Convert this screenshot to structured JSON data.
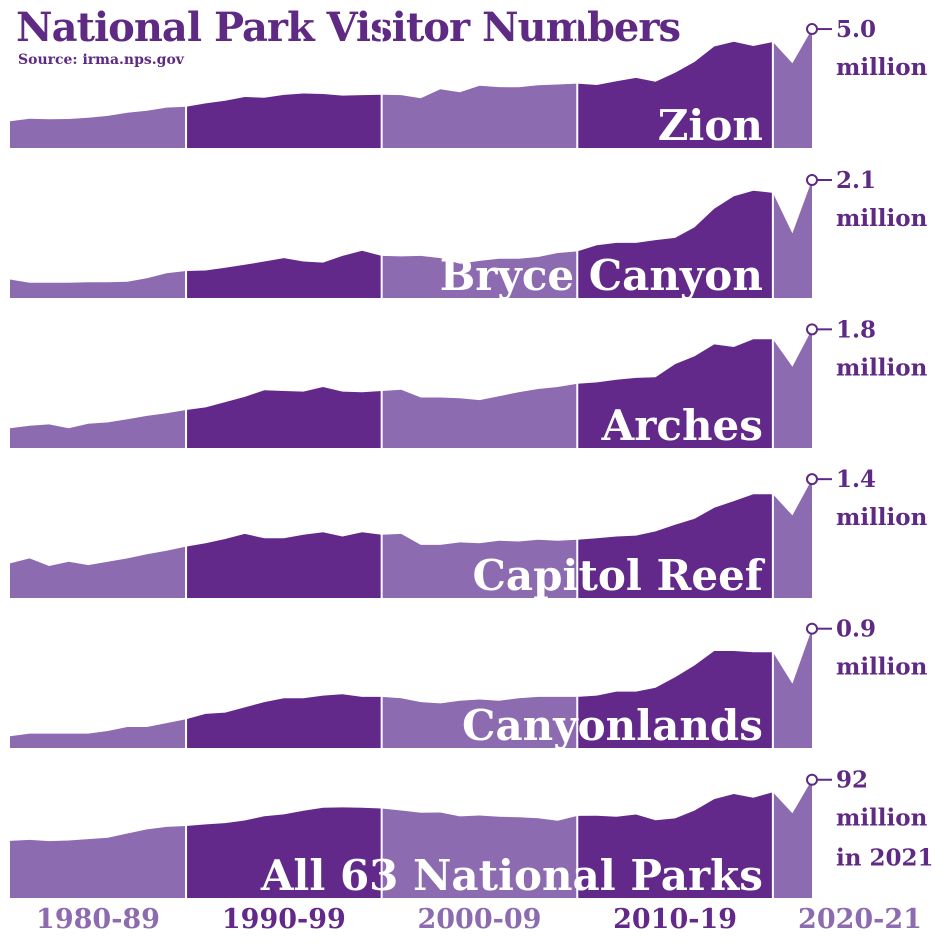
{
  "title": "National Park Visitor Numbers",
  "source": "Source: irma.nps.gov",
  "chart_data": {
    "type": "area",
    "x": [
      1980,
      1981,
      1982,
      1983,
      1984,
      1985,
      1986,
      1987,
      1988,
      1989,
      1990,
      1991,
      1992,
      1993,
      1994,
      1995,
      1996,
      1997,
      1998,
      1999,
      2000,
      2001,
      2002,
      2003,
      2004,
      2005,
      2006,
      2007,
      2008,
      2009,
      2010,
      2011,
      2012,
      2013,
      2014,
      2015,
      2016,
      2017,
      2018,
      2019,
      2020,
      2021
    ],
    "decades": [
      {
        "label": "1980-89",
        "from": 1980,
        "to": 1989,
        "tone": "light"
      },
      {
        "label": "1990-99",
        "from": 1989,
        "to": 1999,
        "tone": "dark"
      },
      {
        "label": "2000-09",
        "from": 1999,
        "to": 2009,
        "tone": "light"
      },
      {
        "label": "2010-19",
        "from": 2009,
        "to": 2019,
        "tone": "dark"
      },
      {
        "label": "2020-21",
        "from": 2019,
        "to": 2021,
        "tone": "light"
      }
    ],
    "colors": {
      "light": "#8c6bb1",
      "dark": "#62298b",
      "text": "#5e2a84",
      "divider": "#ffffff"
    },
    "series": [
      {
        "name": "Zion",
        "end_value": "5.0",
        "end_unit": [
          "million"
        ],
        "unit": "million",
        "ylim": [
          0,
          5.0
        ],
        "values": [
          1.13,
          1.24,
          1.22,
          1.23,
          1.28,
          1.36,
          1.49,
          1.58,
          1.71,
          1.75,
          1.89,
          2.0,
          2.16,
          2.13,
          2.25,
          2.31,
          2.29,
          2.22,
          2.24,
          2.26,
          2.24,
          2.11,
          2.49,
          2.36,
          2.64,
          2.58,
          2.57,
          2.66,
          2.69,
          2.73,
          2.67,
          2.83,
          2.97,
          2.81,
          3.19,
          3.65,
          4.3,
          4.5,
          4.32,
          4.49,
          3.59,
          5.04
        ]
      },
      {
        "name": "Bryce Canyon",
        "end_value": "2.1",
        "end_unit": [
          "million"
        ],
        "unit": "million",
        "ylim": [
          0,
          2.1
        ],
        "values": [
          0.33,
          0.27,
          0.27,
          0.27,
          0.28,
          0.28,
          0.29,
          0.35,
          0.44,
          0.48,
          0.49,
          0.54,
          0.59,
          0.65,
          0.71,
          0.65,
          0.63,
          0.75,
          0.84,
          0.75,
          0.74,
          0.75,
          0.71,
          0.61,
          0.66,
          0.7,
          0.7,
          0.73,
          0.8,
          0.83,
          0.94,
          0.98,
          0.98,
          1.03,
          1.07,
          1.26,
          1.59,
          1.81,
          1.91,
          1.87,
          1.15,
          2.1
        ]
      },
      {
        "name": "Arches",
        "end_value": "1.8",
        "end_unit": [
          "million"
        ],
        "unit": "million",
        "ylim": [
          0,
          1.8
        ],
        "values": [
          0.3,
          0.34,
          0.36,
          0.3,
          0.37,
          0.39,
          0.44,
          0.49,
          0.53,
          0.58,
          0.62,
          0.7,
          0.78,
          0.88,
          0.87,
          0.86,
          0.93,
          0.86,
          0.85,
          0.87,
          0.89,
          0.77,
          0.77,
          0.76,
          0.73,
          0.79,
          0.85,
          0.9,
          0.93,
          0.98,
          1.0,
          1.04,
          1.07,
          1.08,
          1.28,
          1.4,
          1.58,
          1.54,
          1.66,
          1.66,
          1.24,
          1.81
        ]
      },
      {
        "name": "Capitol Reef",
        "end_value": "1.4",
        "end_unit": [
          "million"
        ],
        "unit": "million",
        "ylim": [
          0,
          1.4
        ],
        "values": [
          0.41,
          0.47,
          0.38,
          0.43,
          0.39,
          0.43,
          0.47,
          0.52,
          0.56,
          0.61,
          0.65,
          0.7,
          0.76,
          0.71,
          0.71,
          0.75,
          0.78,
          0.73,
          0.78,
          0.75,
          0.76,
          0.63,
          0.63,
          0.66,
          0.65,
          0.68,
          0.67,
          0.69,
          0.68,
          0.69,
          0.71,
          0.73,
          0.74,
          0.79,
          0.87,
          0.94,
          1.07,
          1.15,
          1.23,
          1.23,
          0.98,
          1.41
        ]
      },
      {
        "name": "Canyonlands",
        "end_value": "0.9",
        "end_unit": [
          "million"
        ],
        "unit": "million",
        "ylim": [
          0,
          0.9
        ],
        "values": [
          0.09,
          0.11,
          0.11,
          0.11,
          0.11,
          0.13,
          0.16,
          0.16,
          0.19,
          0.22,
          0.26,
          0.27,
          0.31,
          0.35,
          0.38,
          0.38,
          0.4,
          0.41,
          0.39,
          0.39,
          0.38,
          0.35,
          0.34,
          0.36,
          0.37,
          0.36,
          0.38,
          0.39,
          0.39,
          0.39,
          0.4,
          0.43,
          0.43,
          0.46,
          0.54,
          0.63,
          0.74,
          0.74,
          0.73,
          0.73,
          0.49,
          0.91
        ]
      },
      {
        "name": "All 63 National Parks",
        "end_value": "92",
        "end_unit": [
          "million",
          "in 2021"
        ],
        "unit": "million",
        "ylim": [
          0,
          92
        ],
        "values": [
          44.5,
          45.3,
          44.4,
          44.8,
          45.9,
          46.9,
          50.3,
          53.5,
          55.4,
          56.1,
          57.4,
          58.4,
          60.4,
          63.8,
          65.2,
          68.1,
          70.4,
          70.6,
          70.3,
          69.8,
          68.2,
          66.5,
          66.7,
          63.6,
          64.3,
          63.3,
          63.0,
          62.2,
          60.2,
          64.0,
          64.1,
          63.3,
          65.1,
          60.6,
          62.1,
          68.2,
          77.1,
          81.1,
          78.2,
          82.4,
          66.1,
          92.2
        ]
      }
    ]
  }
}
